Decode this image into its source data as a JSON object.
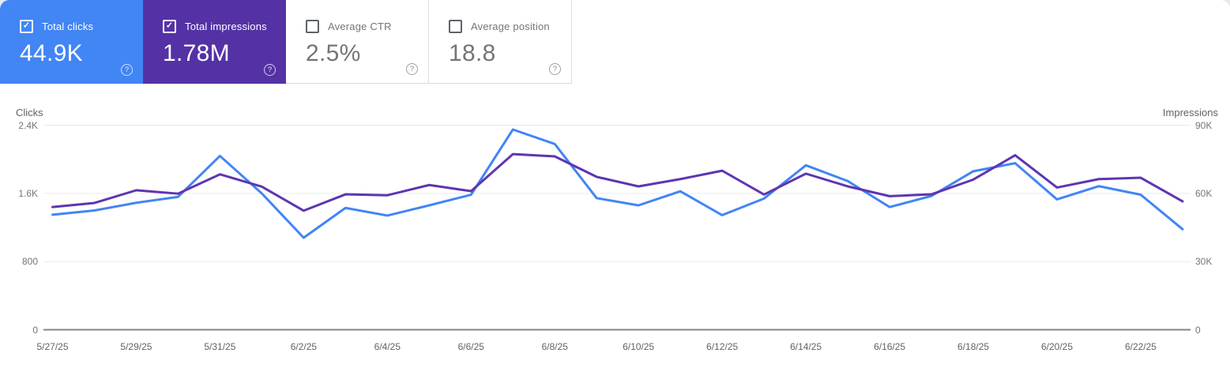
{
  "metrics": {
    "help_icon": "?",
    "cards": [
      {
        "label": "Total clicks",
        "value": "44.9K",
        "checked": true,
        "bg": "#4285f4",
        "text_color": "#ffffff"
      },
      {
        "label": "Total impressions",
        "value": "1.78M",
        "checked": true,
        "bg": "#5432a5",
        "text_color": "#ffffff"
      },
      {
        "label": "Average CTR",
        "value": "2.5%",
        "checked": false,
        "bg": "#ffffff",
        "text_color": "#757575"
      },
      {
        "label": "Average position",
        "value": "18.8",
        "checked": false,
        "bg": "#ffffff",
        "text_color": "#757575"
      }
    ]
  },
  "chart_data": {
    "type": "line",
    "title": "",
    "x": [
      "5/27/25",
      "5/28/25",
      "5/29/25",
      "5/30/25",
      "5/31/25",
      "6/1/25",
      "6/2/25",
      "6/3/25",
      "6/4/25",
      "6/5/25",
      "6/6/25",
      "6/7/25",
      "6/8/25",
      "6/9/25",
      "6/10/25",
      "6/11/25",
      "6/12/25",
      "6/13/25",
      "6/14/25",
      "6/15/25",
      "6/16/25",
      "6/17/25",
      "6/18/25",
      "6/19/25",
      "6/20/25",
      "6/21/25",
      "6/22/25",
      "6/23/25"
    ],
    "x_axis_labels": [
      "5/27/25",
      "5/29/25",
      "5/31/25",
      "6/2/25",
      "6/4/25",
      "6/6/25",
      "6/8/25",
      "6/10/25",
      "6/12/25",
      "6/14/25",
      "6/16/25",
      "6/18/25",
      "6/20/25",
      "6/22/25"
    ],
    "series": [
      {
        "name": "Total clicks",
        "axis": "left",
        "color": "#4285f4",
        "values": [
          1350,
          1400,
          1490,
          1560,
          2040,
          1600,
          1080,
          1430,
          1340,
          1460,
          1585,
          2350,
          2180,
          1545,
          1460,
          1625,
          1345,
          1540,
          1930,
          1745,
          1440,
          1570,
          1860,
          1955,
          1530,
          1685,
          1585,
          1180
        ]
      },
      {
        "name": "Total impressions",
        "axis": "right",
        "color": "#5e35b1",
        "values": [
          54000,
          55800,
          61400,
          59900,
          68400,
          63000,
          52400,
          59600,
          59200,
          63700,
          61000,
          77300,
          76300,
          67300,
          63100,
          66300,
          70000,
          59500,
          68700,
          63100,
          58800,
          59600,
          66100,
          76800,
          62600,
          66300,
          66900,
          56500
        ]
      }
    ],
    "left_axis": {
      "title": "Clicks",
      "min": 0,
      "max": 2400,
      "tick_values": [
        0,
        800,
        1600,
        2400
      ],
      "tick_labels": [
        "0",
        "800",
        "1.6K",
        "2.4K"
      ]
    },
    "right_axis": {
      "title": "Impressions",
      "min": 0,
      "max": 90000,
      "tick_values": [
        0,
        30000,
        60000,
        90000
      ],
      "tick_labels": [
        "0",
        "30K",
        "60K",
        "90K"
      ]
    },
    "grid": true,
    "legend_position": "none",
    "grid_color": "#e8eaed",
    "axis_line_color": "#80868b"
  }
}
